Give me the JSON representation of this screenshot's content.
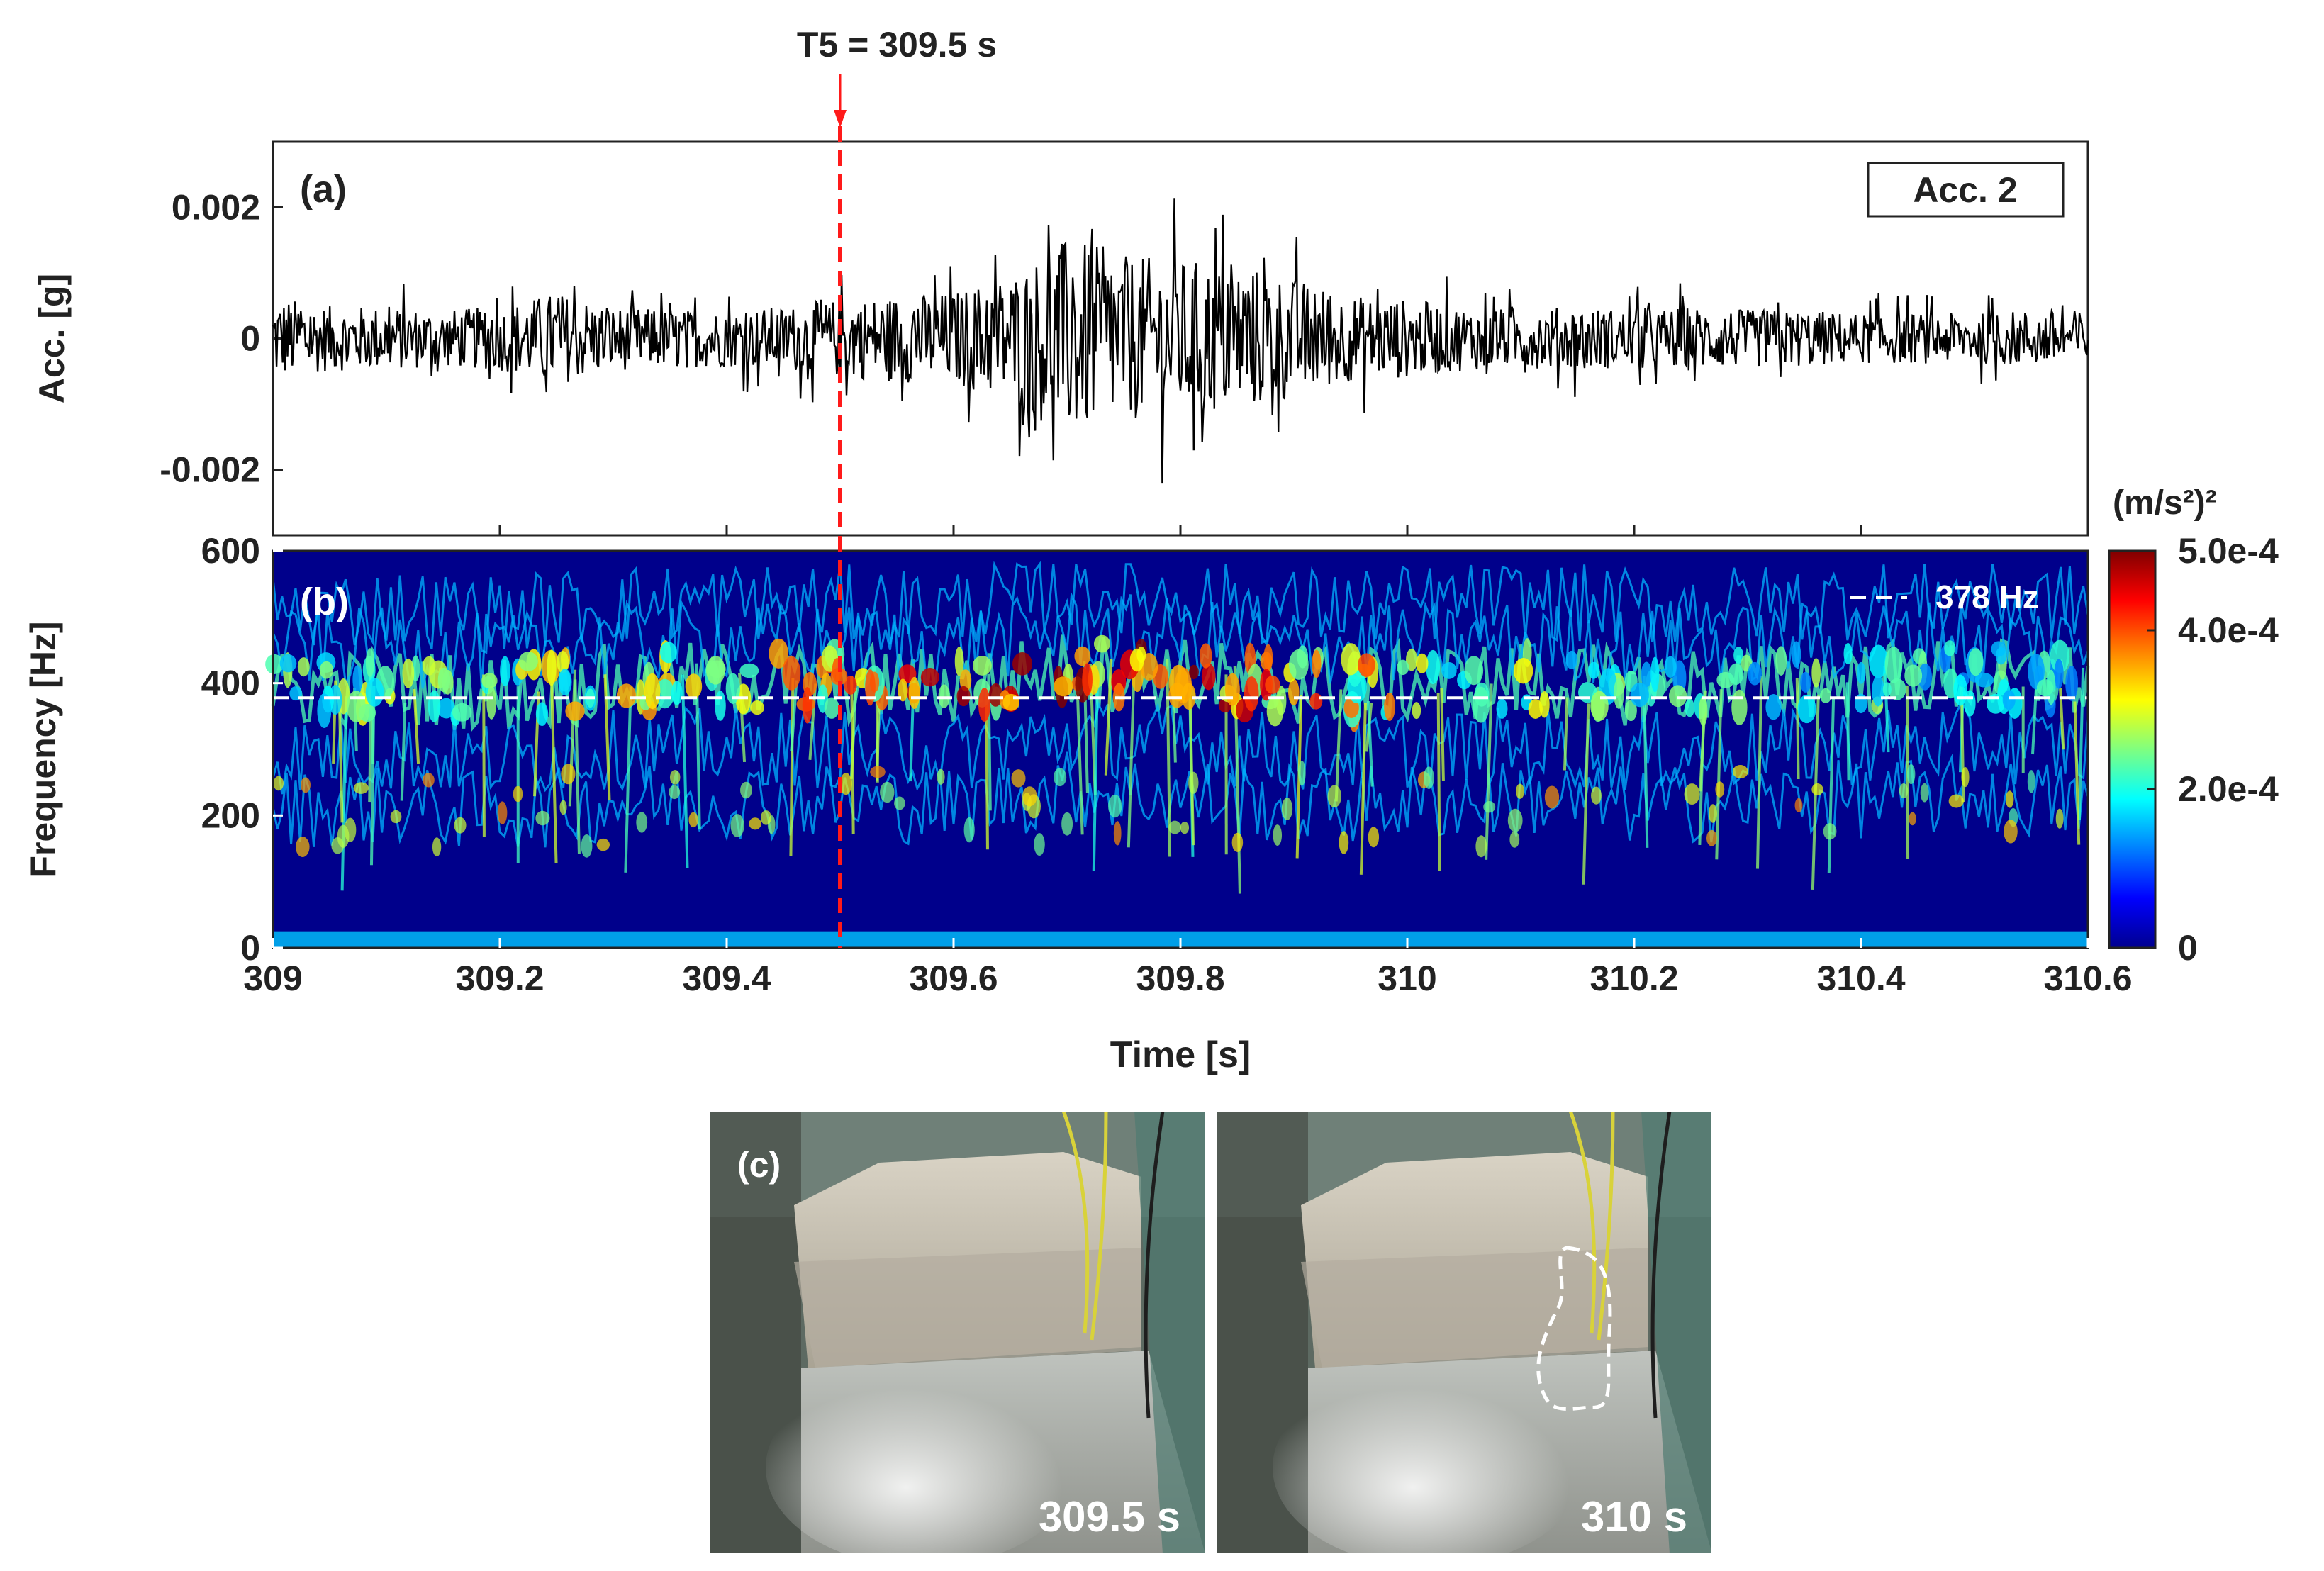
{
  "annotation": {
    "event_label": "T5 = 309.5 s",
    "event_time": 309.5,
    "color": "#ff1a1a"
  },
  "chart_data": [
    {
      "type": "line",
      "panel_label": "(a)",
      "legend": "Acc. 2",
      "ylabel": "Acc. [g]",
      "xlim": [
        309,
        310.6
      ],
      "ylim": [
        -0.003,
        0.003
      ],
      "yticks": [
        0.002,
        0,
        -0.002
      ],
      "ytick_labels": [
        "0.002",
        "0",
        "-0.002"
      ],
      "envelope": {
        "t": [
          309.0,
          309.05,
          309.1,
          309.15,
          309.2,
          309.25,
          309.3,
          309.35,
          309.4,
          309.45,
          309.5,
          309.55,
          309.6,
          309.65,
          309.7,
          309.75,
          309.8,
          309.85,
          309.9,
          309.95,
          310.0,
          310.05,
          310.1,
          310.15,
          310.2,
          310.25,
          310.3,
          310.35,
          310.4,
          310.45,
          310.5,
          310.55,
          310.6
        ],
        "amplitude": [
          0.0012,
          0.0009,
          0.0009,
          0.0008,
          0.0009,
          0.0013,
          0.0009,
          0.0008,
          0.0008,
          0.0009,
          0.0011,
          0.0012,
          0.0013,
          0.0018,
          0.0028,
          0.0023,
          0.0022,
          0.0021,
          0.0017,
          0.0012,
          0.0011,
          0.0009,
          0.0008,
          0.0009,
          0.0008,
          0.0009,
          0.0008,
          0.0008,
          0.0007,
          0.0007,
          0.0007,
          0.0008,
          0.0008
        ]
      },
      "series_color": "#000000"
    },
    {
      "type": "heatmap",
      "panel_label": "(b)",
      "ylabel": "Frequency [Hz]",
      "xlabel": "Time [s]",
      "xlim": [
        309,
        310.6
      ],
      "ylim": [
        0,
        600
      ],
      "xticks": [
        309,
        309.2,
        309.4,
        309.6,
        309.8,
        310,
        310.2,
        310.4,
        310.6
      ],
      "xtick_labels": [
        "309",
        "309.2",
        "309.4",
        "309.6",
        "309.8",
        "310",
        "310.2",
        "310.4",
        "310.6"
      ],
      "yticks": [
        0,
        200,
        400,
        600
      ],
      "ytick_labels": [
        "0",
        "200",
        "400",
        "600"
      ],
      "reference_line": {
        "value": 378,
        "label": "378 Hz"
      },
      "colorbar": {
        "title": "(m/s²)²",
        "range": [
          0,
          0.0005
        ],
        "ticks": [
          0,
          0.0002,
          0.0004,
          0.0005
        ],
        "tick_labels": [
          "0",
          "2.0e-4",
          "4.0e-4",
          "5.0e-4"
        ],
        "colormap": "jet"
      },
      "dominant_band": {
        "t": [
          309.0,
          309.1,
          309.2,
          309.3,
          309.4,
          309.5,
          309.6,
          309.7,
          309.8,
          309.9,
          310.0,
          310.1,
          310.2,
          310.3,
          310.4,
          310.5,
          310.6
        ],
        "freq": [
          390,
          395,
          385,
          400,
          405,
          400,
          395,
          420,
          410,
          395,
          400,
          405,
          395,
          400,
          405,
          410,
          400
        ],
        "intensity": [
          0.00025,
          0.0003,
          0.0003,
          0.00035,
          0.00035,
          0.0004,
          0.00045,
          0.0005,
          0.0005,
          0.0004,
          0.00035,
          0.0003,
          0.00025,
          0.00025,
          0.00025,
          0.00025,
          0.0002
        ]
      }
    }
  ],
  "photos": [
    {
      "panel_label": "(c)",
      "caption": "309.5 s"
    },
    {
      "panel_label": "",
      "caption": "310 s"
    }
  ]
}
